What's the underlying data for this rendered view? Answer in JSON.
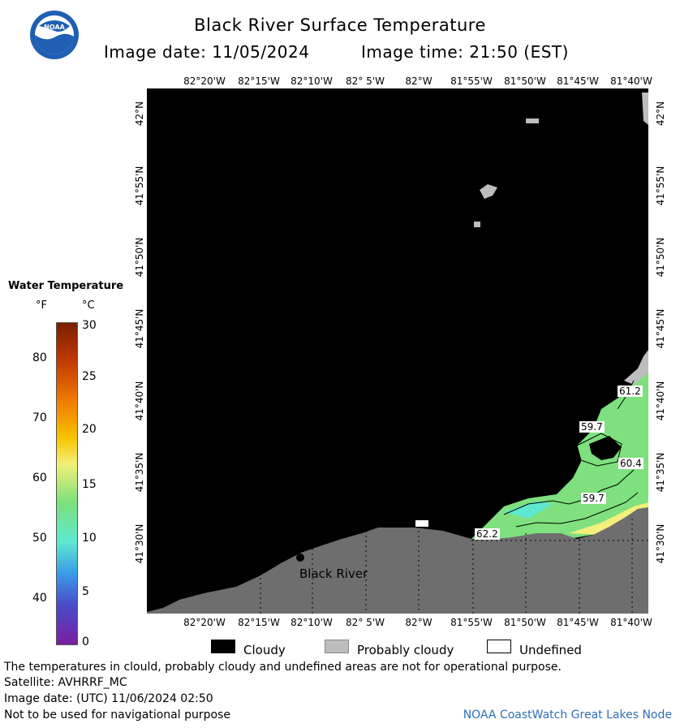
{
  "header": {
    "title": "Black River Surface Temperature",
    "image_date_label": "Image date: 11/05/2024",
    "image_time_label": "Image time: 21:50 (EST)"
  },
  "logo": {
    "text": "NOAA",
    "icon": "noaa-logo-icon"
  },
  "map": {
    "lon_ticks_top": [
      "82°20'W",
      "82°15'W",
      "82°10'W",
      "82° 5'W",
      "82°W",
      "81°55'W",
      "81°50'W",
      "81°45'W",
      "81°40'W"
    ],
    "lon_ticks_bottom": [
      "82°20'W",
      "82°15'W",
      "82°10'W",
      "82° 5'W",
      "82°W",
      "81°55'W",
      "81°50'W",
      "81°45'W",
      "81°40'W"
    ],
    "lat_ticks_left": [
      "42°N",
      "41°55'N",
      "41°50'N",
      "41°45'N",
      "41°40'N",
      "41°35'N",
      "41°30'N"
    ],
    "lat_ticks_right": [
      "42°N",
      "41°55'N",
      "41°50'N",
      "41°45'N",
      "41°40'N",
      "41°35'N",
      "41°30'N"
    ],
    "place_label": "Black River",
    "contour_labels": [
      "61.2",
      "59.7",
      "60.4",
      "59.7",
      "62.2"
    ],
    "colors": {
      "cloud": "#000000",
      "probably_cloudy": "#bdbdbd",
      "land": "#6e6e6e",
      "undefined": "#ffffff",
      "water": "#7ee07e"
    }
  },
  "legend": {
    "title": "Water Temperature",
    "unit_f": "°F",
    "unit_c": "°C",
    "f_labels": [
      "80",
      "70",
      "60",
      "50",
      "40"
    ],
    "c_labels": [
      "30",
      "25",
      "20",
      "15",
      "10",
      "5",
      "0"
    ],
    "gradient_colors": [
      "#7a1f00",
      "#c23a00",
      "#f07a00",
      "#f9c400",
      "#f2f07a",
      "#7be07b",
      "#5fe8d0",
      "#3a9be6",
      "#4a4ac8",
      "#7a1fa0"
    ]
  },
  "key": {
    "cloudy": "Cloudy",
    "probably_cloudy": "Probably cloudy",
    "undefined": "Undefined"
  },
  "footer": {
    "disclaimer": "The temperatures in clould, probably cloudy and undefined areas are not for operational purpose.",
    "satellite": "Satellite: AVHRRF_MC",
    "utc_date": "Image date: (UTC) 11/06/2024  02:50",
    "nav_warning": "Not to be used for navigational purpose",
    "node": "NOAA CoastWatch Great Lakes Node"
  }
}
